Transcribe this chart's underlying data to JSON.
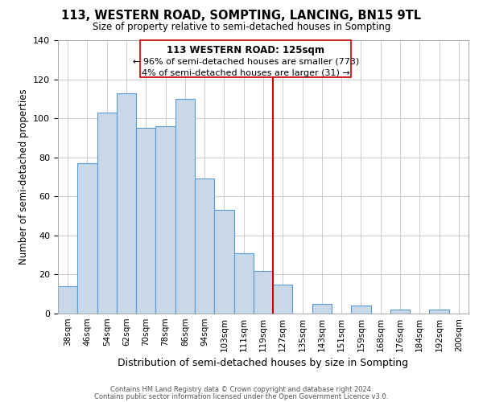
{
  "title": "113, WESTERN ROAD, SOMPTING, LANCING, BN15 9TL",
  "subtitle": "Size of property relative to semi-detached houses in Sompting",
  "xlabel": "Distribution of semi-detached houses by size in Sompting",
  "ylabel": "Number of semi-detached properties",
  "bar_labels": [
    "38sqm",
    "46sqm",
    "54sqm",
    "62sqm",
    "70sqm",
    "78sqm",
    "86sqm",
    "94sqm",
    "103sqm",
    "111sqm",
    "119sqm",
    "127sqm",
    "135sqm",
    "143sqm",
    "151sqm",
    "159sqm",
    "168sqm",
    "176sqm",
    "184sqm",
    "192sqm",
    "200sqm"
  ],
  "bar_values": [
    14,
    77,
    103,
    113,
    95,
    96,
    110,
    69,
    53,
    31,
    22,
    15,
    0,
    5,
    0,
    4,
    0,
    2,
    0,
    2,
    0
  ],
  "bar_color": "#c8d8e8",
  "bar_edge_color": "#5b9bd5",
  "vline_index": 11,
  "vline_color": "#cc0000",
  "annotation_title": "113 WESTERN ROAD: 125sqm",
  "annotation_line1": "← 96% of semi-detached houses are smaller (773)",
  "annotation_line2": "4% of semi-detached houses are larger (31) →",
  "annotation_box_color": "#ffffff",
  "annotation_box_edge": "#cc0000",
  "ylim": [
    0,
    140
  ],
  "yticks": [
    0,
    20,
    40,
    60,
    80,
    100,
    120,
    140
  ],
  "footer1": "Contains HM Land Registry data © Crown copyright and database right 2024.",
  "footer2": "Contains public sector information licensed under the Open Government Licence v3.0.",
  "background_color": "#ffffff",
  "grid_color": "#cccccc"
}
